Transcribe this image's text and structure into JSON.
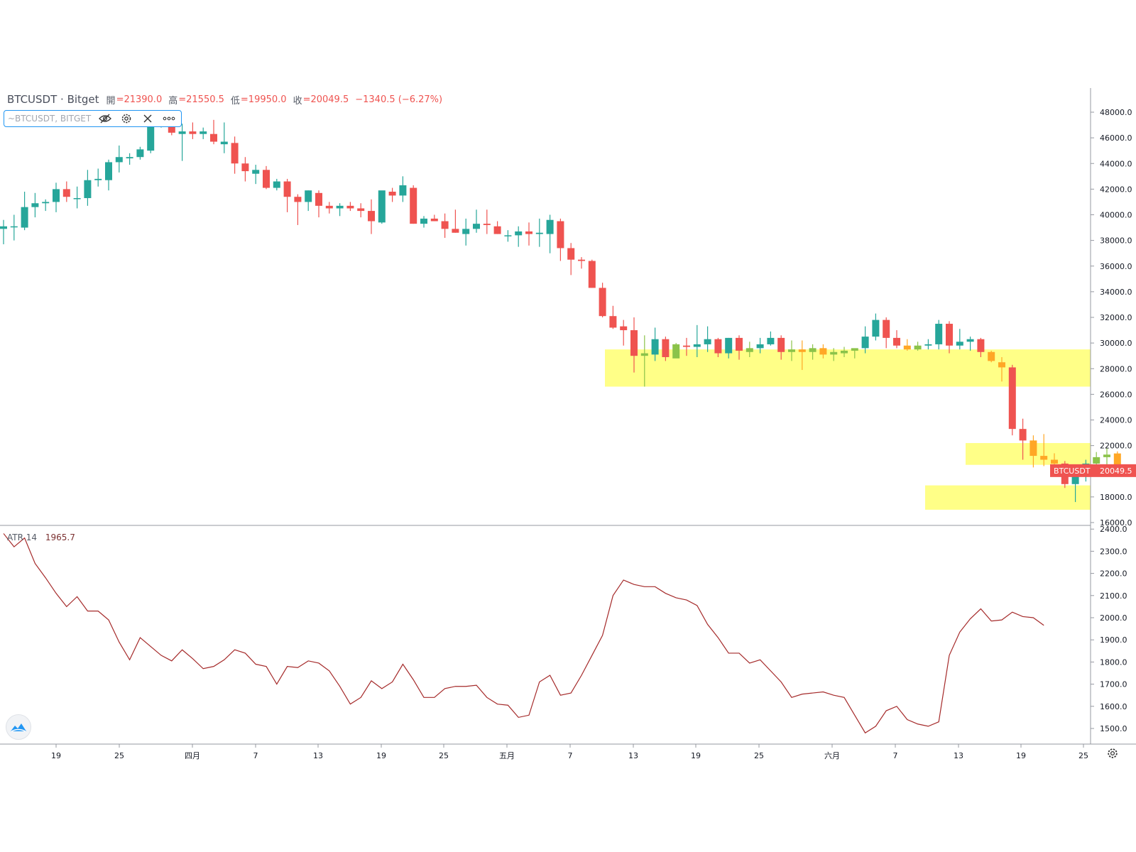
{
  "legend": {
    "symbol": "BTCUSDT · Bitget",
    "open_label": "開",
    "open": "=21390.0",
    "high_label": "高",
    "high": "=21550.5",
    "low_label": "低",
    "low": "=19950.0",
    "close_label": "收",
    "close": "=20049.5",
    "change": "−1340.5 (−6.27%)"
  },
  "overlay": {
    "name": "~BTCUSDT, BITGET",
    "icons": [
      "eye-off-icon",
      "gear-icon",
      "close-icon",
      "more-icon"
    ]
  },
  "atr": {
    "name": "ATR 14",
    "value": "1965.7"
  },
  "price_label": {
    "name": "BTCUSDT",
    "value": "20049.5"
  },
  "colors": {
    "up": "#26a69a",
    "down": "#ef5350",
    "zone": "#ffff7a",
    "zone_up": "#8bc34a",
    "zone_down": "#ffa726",
    "atr_line": "#a52a2a",
    "label_bg": "#ef5350"
  },
  "chart_data": [
    {
      "type": "candlestick",
      "ylim": [
        16000,
        48000
      ],
      "y_ticks": [
        "16000.0",
        "18000.0",
        "20000.0",
        "22000.0",
        "24000.0",
        "26000.0",
        "28000.0",
        "30000.0",
        "32000.0",
        "34000.0",
        "36000.0",
        "38000.0",
        "40000.0",
        "42000.0",
        "44000.0",
        "46000.0",
        "48000.0"
      ],
      "x_ticks": [
        "19",
        "25",
        "四月",
        "7",
        "13",
        "19",
        "25",
        "五月",
        "7",
        "13",
        "19",
        "25",
        "六月",
        "7",
        "13",
        "19",
        "25"
      ],
      "zones": [
        {
          "from": 26600,
          "to": 29500
        },
        {
          "from": 20500,
          "to": 22200
        },
        {
          "from": 17000,
          "to": 18900
        }
      ],
      "candles": [
        [
          38900,
          39600,
          37700,
          39100
        ],
        [
          39100,
          40000,
          38000,
          39100
        ],
        [
          39000,
          41800,
          38800,
          40600
        ],
        [
          40600,
          41700,
          39800,
          40900
        ],
        [
          40900,
          41200,
          40300,
          41000
        ],
        [
          41000,
          42500,
          40200,
          42000
        ],
        [
          42000,
          42600,
          41000,
          41400
        ],
        [
          41300,
          42200,
          40500,
          41300
        ],
        [
          41300,
          43500,
          40700,
          42700
        ],
        [
          42700,
          43600,
          42200,
          42800
        ],
        [
          42700,
          44300,
          41900,
          44100
        ],
        [
          44100,
          45400,
          43300,
          44500
        ],
        [
          44400,
          44800,
          43900,
          44500
        ],
        [
          44500,
          45300,
          44300,
          45100
        ],
        [
          45000,
          47500,
          44800,
          47100
        ],
        [
          47100,
          48100,
          46800,
          47100
        ],
        [
          47100,
          47500,
          46200,
          46400
        ],
        [
          46300,
          47100,
          44200,
          46500
        ],
        [
          46500,
          47200,
          45900,
          46300
        ],
        [
          46300,
          46800,
          45900,
          46500
        ],
        [
          46300,
          47400,
          45500,
          45700
        ],
        [
          45500,
          47200,
          44800,
          45700
        ],
        [
          45600,
          46100,
          43200,
          44000
        ],
        [
          44000,
          44500,
          42600,
          43400
        ],
        [
          43200,
          43900,
          42400,
          43500
        ],
        [
          43500,
          43800,
          42000,
          42100
        ],
        [
          42100,
          42800,
          41900,
          42600
        ],
        [
          42600,
          42800,
          40200,
          41400
        ],
        [
          41400,
          41600,
          39200,
          41000
        ],
        [
          41000,
          41900,
          40300,
          41900
        ],
        [
          41700,
          41900,
          39800,
          40700
        ],
        [
          40700,
          41000,
          40100,
          40500
        ],
        [
          40500,
          40900,
          39900,
          40700
        ],
        [
          40700,
          41000,
          40300,
          40500
        ],
        [
          40500,
          40900,
          39800,
          40300
        ],
        [
          40300,
          41200,
          38500,
          39500
        ],
        [
          39400,
          41700,
          39300,
          41900
        ],
        [
          41800,
          42100,
          41000,
          41500
        ],
        [
          41500,
          43000,
          41000,
          42300
        ],
        [
          42100,
          42300,
          39300,
          39300
        ],
        [
          39300,
          39900,
          39000,
          39700
        ],
        [
          39700,
          40000,
          39500,
          39500
        ],
        [
          39500,
          40100,
          38200,
          38900
        ],
        [
          38900,
          40400,
          38600,
          38600
        ],
        [
          38500,
          39700,
          37600,
          38900
        ],
        [
          38900,
          40400,
          38600,
          39300
        ],
        [
          39300,
          40400,
          38500,
          39200
        ],
        [
          39100,
          39500,
          38500,
          38500
        ],
        [
          38400,
          38800,
          37900,
          38400
        ],
        [
          38400,
          39100,
          37500,
          38700
        ],
        [
          38700,
          39400,
          37600,
          38500
        ],
        [
          38500,
          39700,
          37500,
          38600
        ],
        [
          38500,
          40000,
          37000,
          39600
        ],
        [
          39500,
          39700,
          36400,
          37400
        ],
        [
          37400,
          37800,
          35300,
          36500
        ],
        [
          36500,
          36700,
          35800,
          36400
        ],
        [
          36400,
          36500,
          34300,
          34300
        ],
        [
          34300,
          34700,
          32000,
          32100
        ],
        [
          32100,
          32900,
          31100,
          31200
        ],
        [
          31300,
          31800,
          29800,
          31000
        ],
        [
          31000,
          32000,
          27700,
          29000
        ],
        [
          29000,
          30600,
          26600,
          29200
        ],
        [
          29100,
          31200,
          28600,
          30300
        ],
        [
          30300,
          30500,
          28600,
          28900
        ],
        [
          28800,
          30000,
          29100,
          29900
        ],
        [
          29800,
          30400,
          29000,
          29700
        ],
        [
          29700,
          31400,
          28900,
          29900
        ],
        [
          29900,
          31300,
          29300,
          30300
        ],
        [
          30300,
          30400,
          28900,
          29200
        ],
        [
          29200,
          30400,
          28800,
          30400
        ],
        [
          30400,
          30600,
          28700,
          29400
        ],
        [
          29300,
          30100,
          28900,
          29600
        ],
        [
          29600,
          30400,
          29200,
          29900
        ],
        [
          29900,
          30900,
          29800,
          30400
        ],
        [
          30400,
          30600,
          28700,
          29300
        ],
        [
          29300,
          30200,
          28600,
          29500
        ],
        [
          29500,
          30200,
          27900,
          29300
        ],
        [
          29300,
          29900,
          28700,
          29600
        ],
        [
          29600,
          29900,
          28800,
          29100
        ],
        [
          29100,
          29600,
          28600,
          29300
        ],
        [
          29200,
          29700,
          28900,
          29400
        ],
        [
          29400,
          29500,
          28800,
          29600
        ],
        [
          29600,
          31300,
          29200,
          30500
        ],
        [
          30500,
          32300,
          30200,
          31800
        ],
        [
          31800,
          32000,
          29600,
          30400
        ],
        [
          30400,
          31000,
          29600,
          29800
        ],
        [
          29800,
          30300,
          29400,
          29500
        ],
        [
          29500,
          30100,
          29400,
          29800
        ],
        [
          29800,
          30300,
          29500,
          29900
        ],
        [
          29900,
          31800,
          29500,
          31500
        ],
        [
          31500,
          31700,
          29200,
          29800
        ],
        [
          29800,
          31100,
          29500,
          30100
        ],
        [
          30100,
          30500,
          29400,
          30300
        ],
        [
          30300,
          30400,
          28900,
          29300
        ],
        [
          29300,
          29400,
          28500,
          28600
        ],
        [
          28500,
          28900,
          27000,
          28100
        ],
        [
          28100,
          28300,
          22800,
          23300
        ],
        [
          23300,
          24100,
          20900,
          22400
        ],
        [
          22400,
          22800,
          20300,
          21200
        ],
        [
          21200,
          22900,
          20400,
          20900
        ],
        [
          20900,
          21400,
          20100,
          20600
        ],
        [
          20600,
          20800,
          18700,
          19000
        ],
        [
          19000,
          19800,
          17600,
          19800
        ],
        [
          19800,
          20900,
          19200,
          20600
        ],
        [
          20600,
          21500,
          20300,
          21100
        ],
        [
          21100,
          21800,
          20100,
          21300
        ],
        [
          21390,
          21550.5,
          19950,
          20049.5
        ]
      ]
    },
    {
      "type": "line",
      "name": "ATR 14",
      "ylim": [
        1420,
        2410
      ],
      "y_ticks": [
        "1500.0",
        "1600.0",
        "1700.0",
        "1800.0",
        "1900.0",
        "2000.0",
        "2100.0",
        "2200.0",
        "2300.0",
        "2400.0"
      ],
      "values": [
        2380,
        2320,
        2360,
        2245,
        2180,
        2110,
        2050,
        2095,
        2030,
        2030,
        1990,
        1890,
        1810,
        1910,
        1870,
        1830,
        1805,
        1855,
        1815,
        1770,
        1780,
        1810,
        1855,
        1840,
        1790,
        1780,
        1700,
        1780,
        1775,
        1805,
        1795,
        1760,
        1690,
        1610,
        1640,
        1715,
        1680,
        1710,
        1790,
        1720,
        1640,
        1640,
        1680,
        1690,
        1690,
        1695,
        1640,
        1610,
        1605,
        1550,
        1560,
        1710,
        1740,
        1650,
        1660,
        1740,
        1830,
        1920,
        2100,
        2170,
        2150,
        2140,
        2140,
        2110,
        2090,
        2080,
        2055,
        1970,
        1910,
        1840,
        1840,
        1795,
        1810,
        1760,
        1710,
        1640,
        1655,
        1660,
        1665,
        1650,
        1640,
        1560,
        1480,
        1510,
        1580,
        1600,
        1540,
        1520,
        1510,
        1530,
        1830,
        1935,
        1995,
        2040,
        1985,
        1990,
        2025,
        2005,
        2000,
        1965.7
      ]
    }
  ]
}
